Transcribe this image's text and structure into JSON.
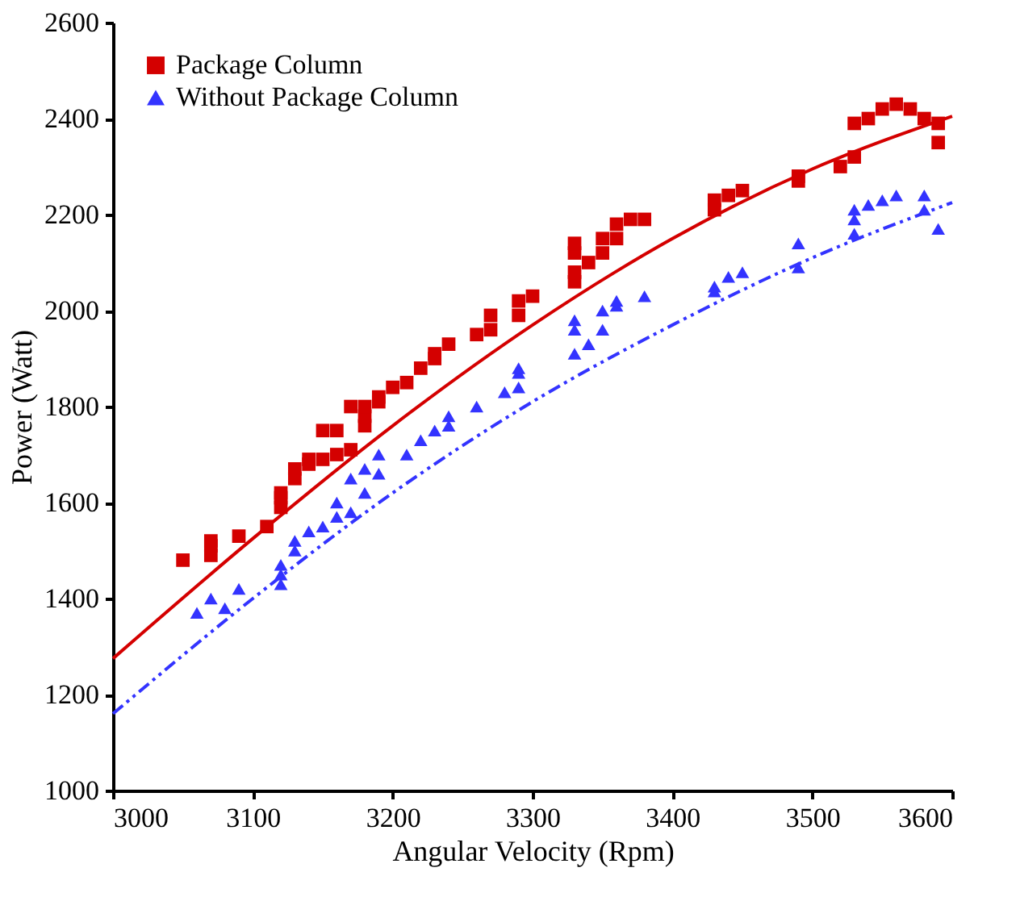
{
  "chart_data": {
    "type": "scatter",
    "xlabel": "Angular Velocity (Rpm)",
    "ylabel": "Power (Watt)",
    "xlim": [
      3000,
      3600
    ],
    "xticks": [
      3000,
      3100,
      3200,
      3300,
      3400,
      3500,
      3600
    ],
    "ylim": [
      1000,
      2600
    ],
    "yticks": [
      1000,
      1200,
      1400,
      1600,
      1800,
      2000,
      2200,
      2400,
      2600
    ],
    "grid": false,
    "legend": "top left",
    "series": [
      {
        "name": "Package Column",
        "marker": "square",
        "color": "#d40000",
        "x": [
          3050,
          3070,
          3070,
          3070,
          3090,
          3110,
          3120,
          3120,
          3120,
          3130,
          3130,
          3140,
          3140,
          3150,
          3150,
          3160,
          3160,
          3170,
          3170,
          3180,
          3180,
          3180,
          3190,
          3190,
          3200,
          3210,
          3220,
          3230,
          3230,
          3240,
          3260,
          3270,
          3270,
          3290,
          3290,
          3300,
          3330,
          3330,
          3330,
          3330,
          3340,
          3350,
          3350,
          3360,
          3360,
          3370,
          3380,
          3430,
          3430,
          3440,
          3450,
          3490,
          3490,
          3520,
          3530,
          3530,
          3540,
          3550,
          3560,
          3570,
          3580,
          3590,
          3590
        ],
        "values": [
          1480,
          1490,
          1510,
          1520,
          1530,
          1550,
          1590,
          1610,
          1620,
          1650,
          1670,
          1680,
          1690,
          1690,
          1750,
          1700,
          1750,
          1710,
          1800,
          1760,
          1780,
          1800,
          1810,
          1820,
          1840,
          1850,
          1880,
          1900,
          1910,
          1930,
          1950,
          1960,
          1990,
          1990,
          2020,
          2030,
          2060,
          2080,
          2120,
          2140,
          2100,
          2120,
          2150,
          2150,
          2180,
          2190,
          2190,
          2210,
          2230,
          2240,
          2250,
          2270,
          2280,
          2300,
          2320,
          2390,
          2400,
          2420,
          2430,
          2420,
          2400,
          2390,
          2350
        ]
      },
      {
        "name": "Without  Package Column",
        "marker": "triangle",
        "color": "#3333ff",
        "x": [
          3060,
          3070,
          3080,
          3090,
          3120,
          3120,
          3120,
          3130,
          3130,
          3140,
          3150,
          3160,
          3160,
          3170,
          3170,
          3180,
          3180,
          3190,
          3190,
          3210,
          3220,
          3230,
          3240,
          3240,
          3260,
          3280,
          3290,
          3290,
          3290,
          3330,
          3330,
          3330,
          3340,
          3350,
          3350,
          3360,
          3360,
          3380,
          3430,
          3430,
          3440,
          3450,
          3490,
          3490,
          3530,
          3530,
          3530,
          3540,
          3550,
          3560,
          3580,
          3580,
          3590
        ],
        "values": [
          1370,
          1400,
          1380,
          1420,
          1430,
          1450,
          1470,
          1500,
          1520,
          1540,
          1550,
          1570,
          1600,
          1580,
          1650,
          1620,
          1670,
          1660,
          1700,
          1700,
          1730,
          1750,
          1760,
          1780,
          1800,
          1830,
          1840,
          1870,
          1880,
          1910,
          1960,
          1980,
          1930,
          1960,
          2000,
          2010,
          2020,
          2030,
          2040,
          2050,
          2070,
          2080,
          2090,
          2140,
          2160,
          2190,
          2210,
          2220,
          2230,
          2240,
          2210,
          2240,
          2170
        ]
      },
      {
        "type": "line",
        "line_style": "solid",
        "color": "#d40000",
        "x": [
          3000,
          3100,
          3200,
          3300,
          3400,
          3500,
          3600
        ],
        "values": [
          1275,
          1525,
          1760,
          1970,
          2150,
          2295,
          2405
        ]
      },
      {
        "type": "line",
        "line_style": "dashed",
        "color": "#3333ff",
        "x": [
          3000,
          3100,
          3200,
          3300,
          3400,
          3500,
          3600
        ],
        "values": [
          1160,
          1400,
          1620,
          1810,
          1970,
          2110,
          2225
        ]
      }
    ]
  }
}
